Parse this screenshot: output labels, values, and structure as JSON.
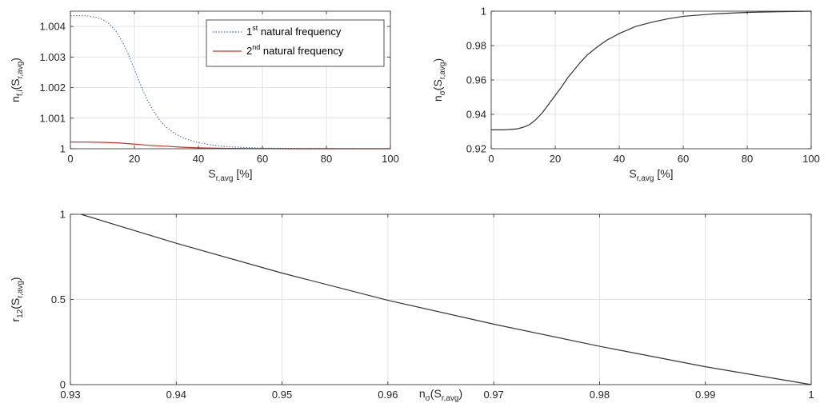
{
  "chart_data": [
    {
      "type": "line",
      "xlabel": {
        "main": "S",
        "sub": "r,avg",
        "suffix": " [%]"
      },
      "ylabel": {
        "main": "n",
        "sub": "f,i",
        "open": "(S",
        "inner_sub": "r,avg",
        "close": ")"
      },
      "xlim": [
        0,
        100
      ],
      "ylim": [
        1,
        1.0045
      ],
      "xticks": [
        0,
        20,
        40,
        60,
        80,
        100
      ],
      "xtick_labels": [
        "0",
        "20",
        "40",
        "60",
        "80",
        "100"
      ],
      "yticks": [
        1,
        1.001,
        1.002,
        1.003,
        1.004
      ],
      "ytick_labels": [
        "1",
        "1.001",
        "1.002",
        "1.003",
        "1.004"
      ],
      "grid": true,
      "legend_position": "top-right",
      "series": [
        {
          "name": {
            "pre": "1",
            "sup": "st",
            "post": " natural frequency"
          },
          "color": "#4a6fa5",
          "dash": "dotted",
          "x": [
            0,
            5,
            8,
            10,
            12,
            14,
            16,
            18,
            20,
            22,
            24,
            26,
            28,
            30,
            33,
            36,
            40,
            45,
            50,
            55,
            60,
            70,
            80,
            90,
            100
          ],
          "y": [
            1.00435,
            1.00435,
            1.0043,
            1.00423,
            1.0041,
            1.00388,
            1.00355,
            1.00312,
            1.0026,
            1.00208,
            1.0016,
            1.00122,
            1.00092,
            1.0007,
            1.00047,
            1.00032,
            1.0002,
            1.00011,
            1.00006,
            1.00004,
            1.00002,
            1.00001,
            1.000005,
            1.0,
            1.0
          ]
        },
        {
          "name": {
            "pre": "2",
            "sup": "nd",
            "post": " natural frequency"
          },
          "color": "#c0392b",
          "dash": "solid",
          "x": [
            0,
            5,
            10,
            15,
            20,
            25,
            30,
            35,
            40,
            50,
            60,
            70,
            80,
            90,
            100
          ],
          "y": [
            1.00022,
            1.00022,
            1.00021,
            1.00019,
            1.00015,
            1.00011,
            1.00008,
            1.00005,
            1.00003,
            1.00001,
            1.000005,
            1.0,
            1.0,
            1.0,
            1.0
          ]
        }
      ]
    },
    {
      "type": "line",
      "xlabel": {
        "main": "S",
        "sub": "r,avg",
        "suffix": " [%]"
      },
      "ylabel": {
        "main": "n",
        "sub": "σ",
        "open": "(S",
        "inner_sub": "r,avg",
        "close": ")"
      },
      "xlim": [
        0,
        100
      ],
      "ylim": [
        0.92,
        1
      ],
      "xticks": [
        0,
        20,
        40,
        60,
        80,
        100
      ],
      "xtick_labels": [
        "0",
        "20",
        "40",
        "60",
        "80",
        "100"
      ],
      "yticks": [
        0.92,
        0.94,
        0.96,
        0.98,
        1
      ],
      "ytick_labels": [
        "0.92",
        "0.94",
        "0.96",
        "0.98",
        "1"
      ],
      "grid": true,
      "series": [
        {
          "color": "#333333",
          "dash": "solid",
          "x": [
            0,
            4,
            8,
            10,
            12,
            14,
            16,
            18,
            20,
            22,
            24,
            26,
            28,
            30,
            33,
            36,
            40,
            45,
            50,
            55,
            60,
            70,
            80,
            90,
            100
          ],
          "y": [
            0.931,
            0.931,
            0.9315,
            0.9325,
            0.934,
            0.937,
            0.941,
            0.946,
            0.951,
            0.956,
            0.9615,
            0.966,
            0.9705,
            0.9745,
            0.979,
            0.983,
            0.987,
            0.991,
            0.9935,
            0.9955,
            0.997,
            0.9985,
            0.9993,
            0.9997,
            1.0
          ]
        }
      ]
    },
    {
      "type": "line",
      "xlabel": {
        "main": "n",
        "sub": "σ",
        "open": "(S",
        "inner_sub": "r,avg",
        "close": ")"
      },
      "ylabel": {
        "main": "r",
        "sub": "12",
        "open": "(S",
        "inner_sub": "r,avg",
        "close": ")"
      },
      "xlim": [
        0.93,
        1
      ],
      "ylim": [
        0,
        1
      ],
      "xticks": [
        0.93,
        0.94,
        0.95,
        0.96,
        0.97,
        0.98,
        0.99,
        1
      ],
      "xtick_labels": [
        "0.93",
        "0.94",
        "0.95",
        "0.96",
        "0.97",
        "0.98",
        "0.99",
        "1"
      ],
      "yticks": [
        0,
        0.5,
        1
      ],
      "ytick_labels": [
        "0",
        "0.5",
        "1"
      ],
      "grid": true,
      "series": [
        {
          "color": "#333333",
          "dash": "solid",
          "x": [
            0.931,
            0.94,
            0.95,
            0.96,
            0.97,
            0.98,
            0.99,
            1.0
          ],
          "y": [
            1.0,
            0.83,
            0.655,
            0.495,
            0.355,
            0.225,
            0.105,
            0.0
          ]
        }
      ]
    }
  ]
}
